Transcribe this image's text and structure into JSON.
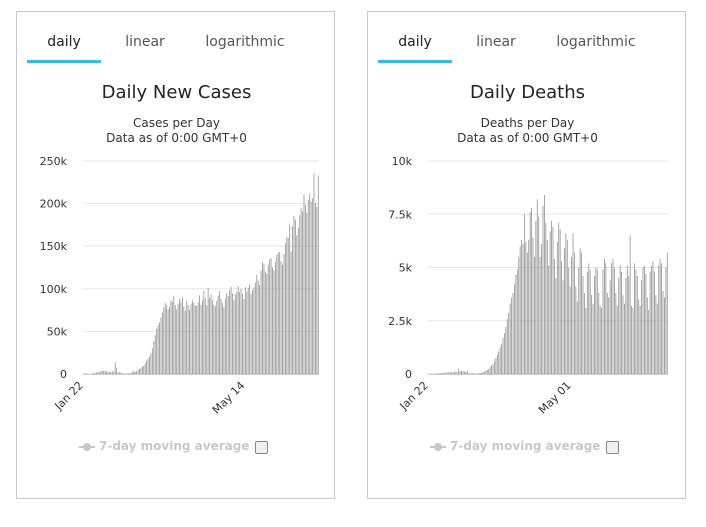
{
  "chart_data": [
    {
      "type": "bar",
      "tabs": [
        "daily",
        "linear",
        "logarithmic"
      ],
      "active_tab": "daily",
      "title": "Daily New Cases",
      "subtitle": "Cases per Day",
      "subtitle2": "Data as of 0:00 GMT+0",
      "ylim": [
        0,
        250000
      ],
      "yticks": [
        0,
        50000,
        100000,
        150000,
        200000,
        250000
      ],
      "ytick_labels": [
        "0",
        "50k",
        "100k",
        "150k",
        "200k",
        "250k"
      ],
      "xticks": [
        {
          "index": 0,
          "label": "Jan 22"
        },
        {
          "index": 113,
          "label": "May 14"
        }
      ],
      "legend": {
        "label": "7-day moving average",
        "checked": false
      },
      "bar_color": "#999999",
      "values": [
        580,
        640,
        280,
        20,
        0,
        10,
        660,
        1600,
        1100,
        2000,
        2600,
        2000,
        3100,
        3900,
        3700,
        3200,
        3400,
        2800,
        2000,
        2600,
        3200,
        2900,
        14000,
        6800,
        2500,
        2000,
        1800,
        1200,
        500,
        400,
        420,
        580,
        890,
        1100,
        2200,
        3900,
        2600,
        3200,
        4800,
        6200,
        7100,
        8900,
        9800,
        12400,
        15700,
        18200,
        20300,
        24100,
        30200,
        38500,
        45600,
        53400,
        57200,
        60600,
        66300,
        72400,
        78000,
        83500,
        81200,
        75600,
        79200,
        86600,
        84700,
        91500,
        80900,
        75900,
        82000,
        88100,
        84100,
        90800,
        79300,
        74200,
        85600,
        80800,
        75400,
        82100,
        86200,
        83400,
        80500,
        79800,
        84100,
        92300,
        81500,
        86400,
        97600,
        89200,
        80700,
        100800,
        88900,
        93500,
        86600,
        81200,
        79500,
        85700,
        92200,
        97500,
        88400,
        83200,
        78300,
        88600,
        95200,
        91400,
        98700,
        102500,
        94800,
        86700,
        93400,
        96400,
        103200,
        96300,
        100200,
        94100,
        87900,
        102300,
        96700,
        101200,
        105700,
        93800,
        98200,
        101800,
        107100,
        116400,
        109600,
        104500,
        121500,
        131200,
        129000,
        120200,
        117600,
        127900,
        134500,
        136200,
        125400,
        121600,
        131500,
        139900,
        142700,
        143100,
        132500,
        128400,
        140700,
        153500,
        160800,
        159500,
        175400,
        143700,
        173300,
        185200,
        181000,
        162800,
        171700,
        186400,
        195100,
        190900,
        210800,
        198500,
        189100,
        204300,
        211600,
        202400,
        206300,
        235600,
        200600,
        196100,
        232900
      ]
    },
    {
      "type": "bar",
      "tabs": [
        "daily",
        "linear",
        "logarithmic"
      ],
      "active_tab": "daily",
      "title": "Daily Deaths",
      "subtitle": "Deaths per Day",
      "subtitle2": "Data as of 0:00 GMT+0",
      "ylim": [
        0,
        10000
      ],
      "yticks": [
        0,
        2500,
        5000,
        7500,
        10000
      ],
      "ytick_labels": [
        "0",
        "2.5k",
        "5k",
        "7.5k",
        "10k"
      ],
      "xticks": [
        {
          "index": 0,
          "label": "Jan 22"
        },
        {
          "index": 100,
          "label": "May 01"
        }
      ],
      "legend": {
        "label": "7-day moving average",
        "checked": false
      },
      "bar_color": "#999999",
      "values": [
        17,
        0,
        8,
        16,
        14,
        26,
        26,
        38,
        43,
        46,
        45,
        57,
        64,
        66,
        73,
        73,
        86,
        89,
        97,
        108,
        97,
        254,
        121,
        143,
        142,
        106,
        98,
        143,
        30,
        31,
        30,
        50,
        20,
        20,
        30,
        30,
        40,
        60,
        90,
        110,
        150,
        200,
        240,
        330,
        400,
        470,
        600,
        750,
        900,
        1050,
        1250,
        1420,
        1700,
        1920,
        2200,
        2580,
        2880,
        3300,
        3570,
        3800,
        4200,
        4650,
        4900,
        5500,
        6000,
        6300,
        6100,
        7500,
        6200,
        5700,
        6300,
        7600,
        7800,
        6400,
        5500,
        7200,
        8200,
        7400,
        5500,
        6100,
        7900,
        8400,
        7100,
        6300,
        5100,
        6700,
        7200,
        6900,
        5400,
        4500,
        6200,
        7100,
        6800,
        5300,
        4400,
        5900,
        6600,
        6300,
        5000,
        4100,
        5500,
        6600,
        5700,
        4100,
        3400,
        5000,
        5900,
        5700,
        4600,
        3800,
        3100,
        4800,
        5200,
        4900,
        3700,
        3300,
        4600,
        5000,
        4900,
        3800,
        3200,
        3100,
        4900,
        5400,
        5200,
        3800,
        3600,
        4400,
        5200,
        5400,
        5000,
        3800,
        3200,
        4500,
        5100,
        4800,
        3700,
        3300,
        4500,
        5100,
        4600,
        6500,
        3200,
        3100,
        5200,
        4900,
        4600,
        3500,
        3200,
        4400,
        5000,
        5100,
        4700,
        3600,
        3000,
        4800,
        5100,
        5300,
        4800,
        3700,
        3300,
        5100,
        5400,
        5200,
        3900,
        3600,
        5000,
        5700
      ]
    }
  ]
}
